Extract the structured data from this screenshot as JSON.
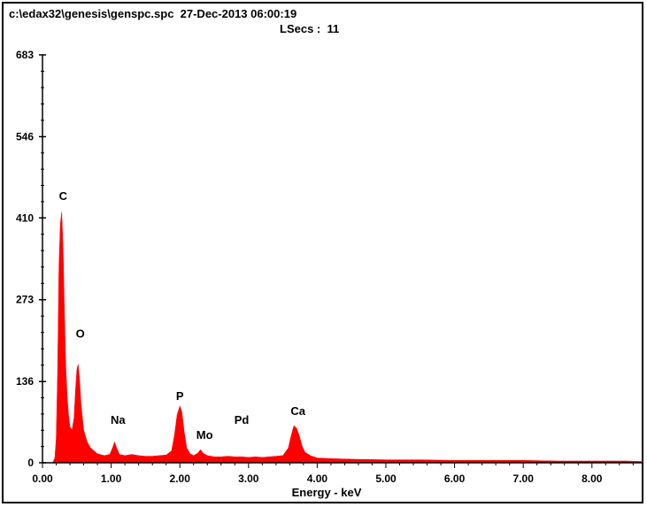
{
  "header": {
    "file_info": "c:\\edax32\\genesis\\genspc.spc  27-Dec-2013 06:00:19",
    "lsecs": "LSecs :  11"
  },
  "chart_data": {
    "type": "area",
    "title": "",
    "xlabel": "Energy - keV",
    "ylabel": "",
    "xlim": [
      0,
      8.75
    ],
    "ylim": [
      0,
      683
    ],
    "y_ticks": [
      "0",
      "136",
      "273",
      "410",
      "546",
      "683"
    ],
    "x_ticks": [
      "0.00",
      "1.00",
      "2.00",
      "3.00",
      "4.00",
      "5.00",
      "6.00",
      "7.00",
      "8.00"
    ],
    "series": [
      {
        "color": "#ff0000",
        "points": [
          [
            0.0,
            0
          ],
          [
            0.15,
            0
          ],
          [
            0.18,
            8
          ],
          [
            0.2,
            40
          ],
          [
            0.22,
            150
          ],
          [
            0.24,
            330
          ],
          [
            0.26,
            400
          ],
          [
            0.28,
            420
          ],
          [
            0.3,
            360
          ],
          [
            0.32,
            250
          ],
          [
            0.34,
            160
          ],
          [
            0.36,
            110
          ],
          [
            0.38,
            80
          ],
          [
            0.4,
            60
          ],
          [
            0.43,
            55
          ],
          [
            0.46,
            75
          ],
          [
            0.48,
            120
          ],
          [
            0.5,
            155
          ],
          [
            0.52,
            165
          ],
          [
            0.54,
            140
          ],
          [
            0.56,
            100
          ],
          [
            0.6,
            55
          ],
          [
            0.65,
            35
          ],
          [
            0.7,
            25
          ],
          [
            0.8,
            15
          ],
          [
            0.9,
            12
          ],
          [
            0.98,
            14
          ],
          [
            1.02,
            25
          ],
          [
            1.05,
            35
          ],
          [
            1.08,
            25
          ],
          [
            1.12,
            14
          ],
          [
            1.2,
            12
          ],
          [
            1.3,
            14
          ],
          [
            1.4,
            12
          ],
          [
            1.5,
            11
          ],
          [
            1.6,
            11
          ],
          [
            1.7,
            12
          ],
          [
            1.8,
            13
          ],
          [
            1.88,
            20
          ],
          [
            1.92,
            45
          ],
          [
            1.96,
            80
          ],
          [
            2.0,
            95
          ],
          [
            2.03,
            85
          ],
          [
            2.06,
            55
          ],
          [
            2.1,
            25
          ],
          [
            2.15,
            15
          ],
          [
            2.2,
            12
          ],
          [
            2.26,
            16
          ],
          [
            2.3,
            22
          ],
          [
            2.34,
            16
          ],
          [
            2.4,
            12
          ],
          [
            2.5,
            10
          ],
          [
            2.6,
            10
          ],
          [
            2.7,
            11
          ],
          [
            2.8,
            10
          ],
          [
            2.9,
            10
          ],
          [
            3.0,
            9
          ],
          [
            3.1,
            10
          ],
          [
            3.2,
            9
          ],
          [
            3.3,
            10
          ],
          [
            3.4,
            11
          ],
          [
            3.5,
            12
          ],
          [
            3.58,
            25
          ],
          [
            3.62,
            45
          ],
          [
            3.66,
            62
          ],
          [
            3.7,
            58
          ],
          [
            3.74,
            45
          ],
          [
            3.78,
            28
          ],
          [
            3.82,
            18
          ],
          [
            3.9,
            12
          ],
          [
            4.0,
            8
          ],
          [
            4.2,
            7
          ],
          [
            4.5,
            6
          ],
          [
            5.0,
            5
          ],
          [
            5.5,
            5
          ],
          [
            6.0,
            4
          ],
          [
            6.5,
            4
          ],
          [
            7.0,
            4
          ],
          [
            7.5,
            3
          ],
          [
            8.0,
            3
          ],
          [
            8.5,
            3
          ],
          [
            8.75,
            2
          ]
        ]
      }
    ],
    "annotations": [
      {
        "label": "C",
        "x": 0.3,
        "y": 440
      },
      {
        "label": "O",
        "x": 0.55,
        "y": 210
      },
      {
        "label": "Na",
        "x": 1.1,
        "y": 65
      },
      {
        "label": "P",
        "x": 2.0,
        "y": 105
      },
      {
        "label": "Mo",
        "x": 2.36,
        "y": 40
      },
      {
        "label": "Pd",
        "x": 2.9,
        "y": 65
      },
      {
        "label": "Ca",
        "x": 3.72,
        "y": 80
      }
    ]
  }
}
